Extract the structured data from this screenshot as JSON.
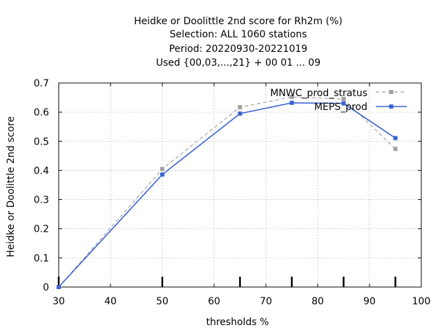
{
  "chart_data": {
    "type": "line",
    "title_lines": [
      "Heidke or Doolittle 2nd score  for Rh2m (%)",
      "Selection: ALL    1060 stations",
      "Period: 20220930-20221019",
      "Used {00,03,...,21} + 00 01 ... 09"
    ],
    "xlabel": "thresholds %",
    "ylabel": "Heidke or Doolittle 2nd score",
    "xlim": [
      30,
      100
    ],
    "ylim": [
      0,
      0.7
    ],
    "xticks": [
      30,
      40,
      50,
      60,
      70,
      80,
      90,
      100
    ],
    "yticks": [
      0,
      0.1,
      0.2,
      0.3,
      0.4,
      0.5,
      0.6,
      0.7
    ],
    "xtick_labels": [
      "30",
      "40",
      "50",
      "60",
      "70",
      "80",
      "90",
      "100"
    ],
    "ytick_labels": [
      "0",
      "0.1",
      "0.2",
      "0.3",
      "0.4",
      "0.5",
      "0.6",
      "0.7"
    ],
    "data_marker_x": [
      30,
      50,
      65,
      75,
      85,
      95
    ],
    "grid": true,
    "legend_position": "top-right",
    "series": [
      {
        "name": "MNWC_prod_stratus",
        "color": "#a0a0a0",
        "dash": true,
        "x": [
          30,
          50,
          65,
          75,
          85,
          95
        ],
        "y": [
          0,
          0.405,
          0.617,
          0.652,
          0.645,
          0.474
        ]
      },
      {
        "name": "MEPS_prod",
        "color": "#3a62d4",
        "dash": false,
        "x": [
          30,
          50,
          65,
          75,
          85,
          95
        ],
        "y": [
          0,
          0.386,
          0.595,
          0.632,
          0.63,
          0.511
        ]
      }
    ]
  }
}
